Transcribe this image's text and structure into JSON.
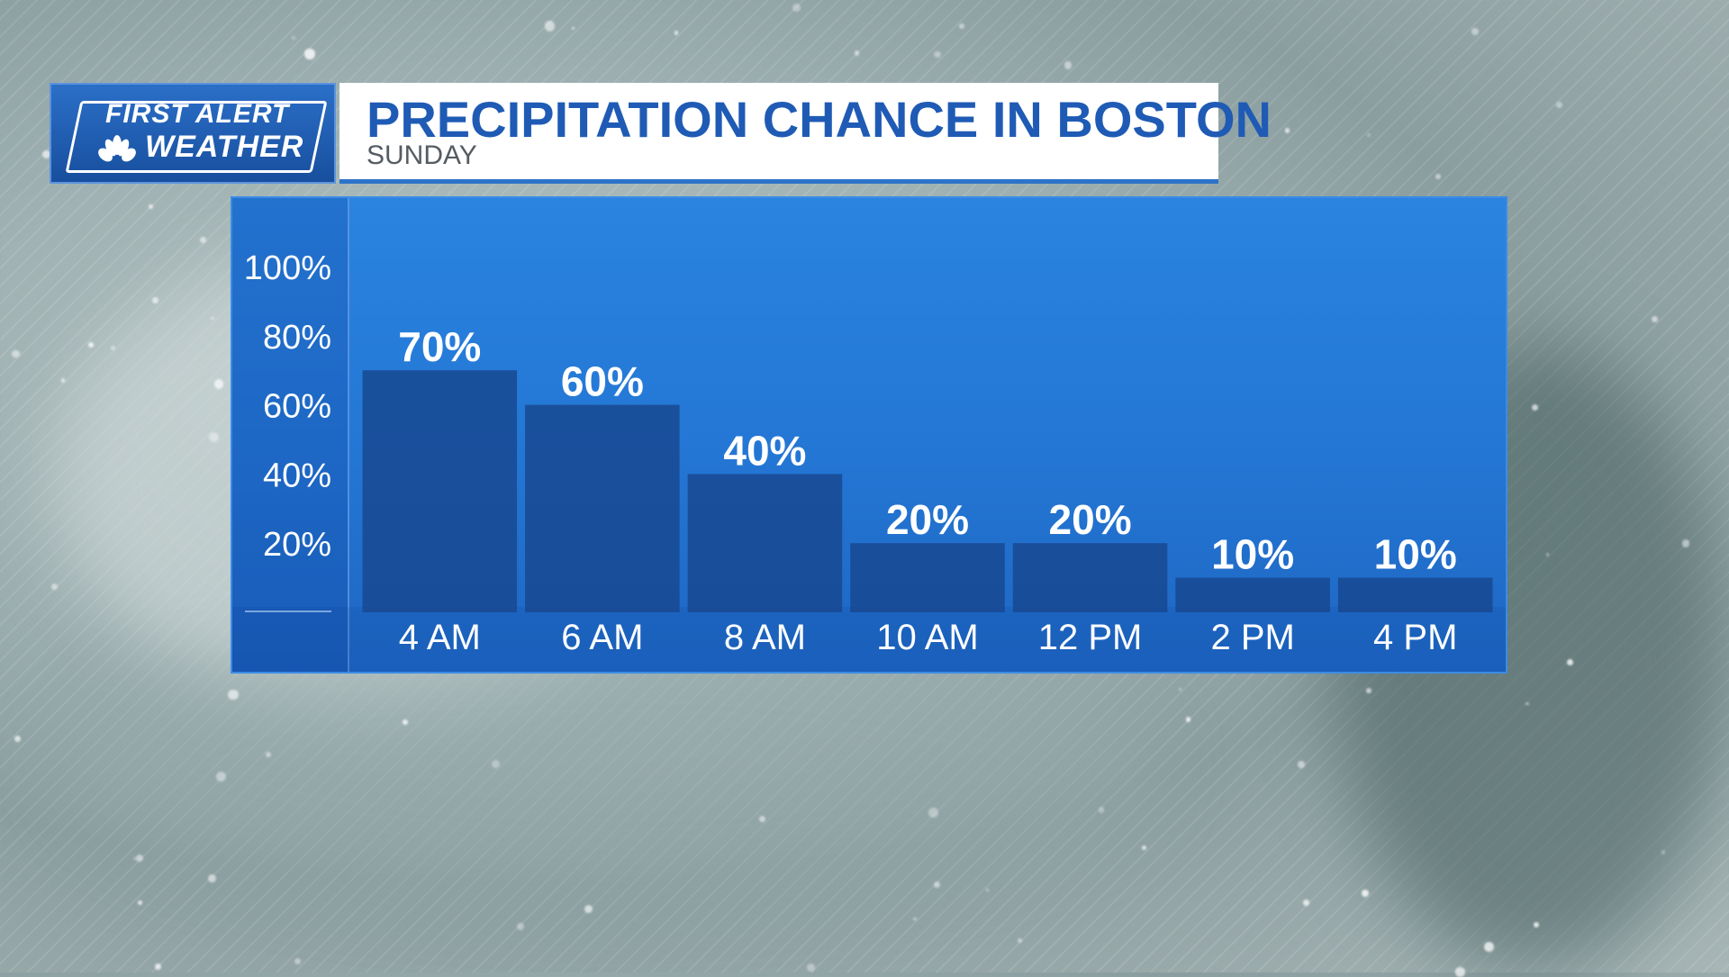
{
  "brand": {
    "logo_line1": "FIRST ALERT",
    "logo_line2": "WEATHER",
    "logo_icon": "peacock-icon",
    "logo_bg": "#1f5bb5"
  },
  "header": {
    "title": "PRECIPITATION CHANCE IN BOSTON",
    "subtitle": "SUNDAY",
    "title_color": "#1f5bb5"
  },
  "chart_data": {
    "type": "bar",
    "categories": [
      "4 AM",
      "6 AM",
      "8 AM",
      "10 AM",
      "12 PM",
      "2 PM",
      "4 PM"
    ],
    "values": [
      70,
      60,
      40,
      20,
      20,
      10,
      10
    ],
    "data_labels": [
      "70%",
      "60%",
      "40%",
      "20%",
      "20%",
      "10%",
      "10%"
    ],
    "y_ticks": [
      20,
      40,
      60,
      80,
      100
    ],
    "y_tick_labels": [
      "20%",
      "40%",
      "60%",
      "80%",
      "100%"
    ],
    "ylim": [
      0,
      100
    ],
    "title": "PRECIPITATION CHANCE IN BOSTON",
    "subtitle": "SUNDAY",
    "grid": false,
    "legend": "none",
    "bar_color": "#17478f"
  }
}
